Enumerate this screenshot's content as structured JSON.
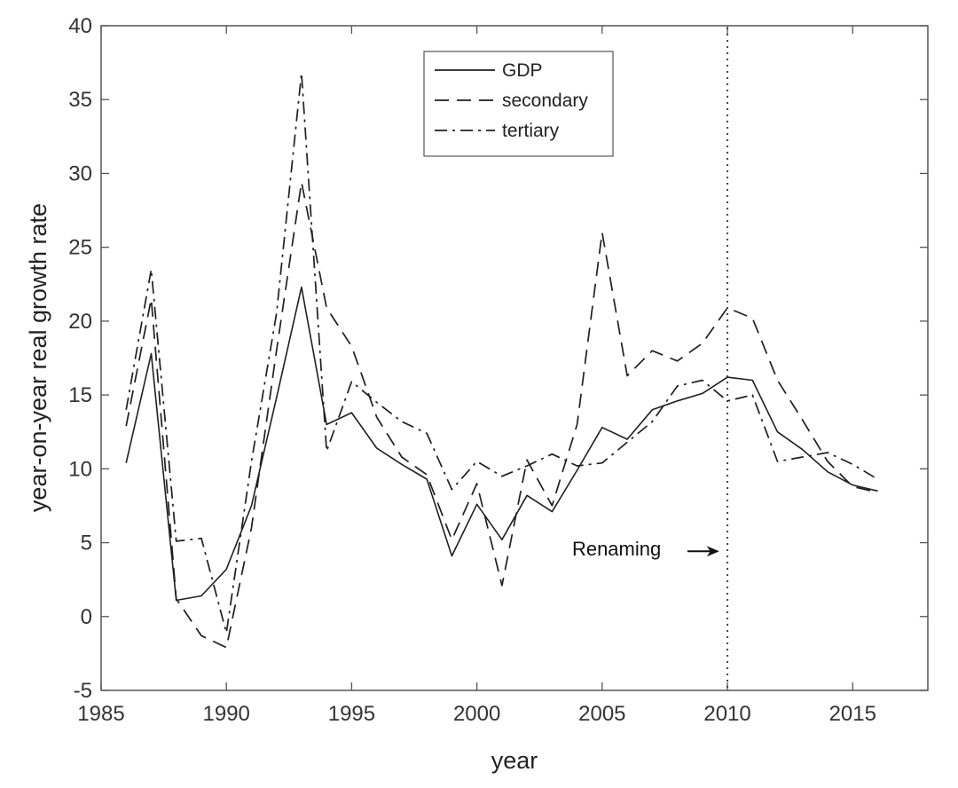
{
  "chart_data": {
    "type": "line",
    "title": "",
    "xlabel": "year",
    "ylabel": "year-on-year real growth rate",
    "xlim": [
      1985,
      2018
    ],
    "ylim": [
      -5,
      40
    ],
    "xticks": [
      1985,
      1990,
      1995,
      2000,
      2005,
      2010,
      2015
    ],
    "yticks": [
      -5,
      0,
      5,
      10,
      15,
      20,
      25,
      30,
      35,
      40
    ],
    "grid": false,
    "legend_position": "top-center",
    "x": [
      1986,
      1987,
      1988,
      1989,
      1990,
      1991,
      1992,
      1993,
      1994,
      1995,
      1996,
      1997,
      1998,
      1999,
      2000,
      2001,
      2002,
      2003,
      2004,
      2005,
      2006,
      2007,
      2008,
      2009,
      2010,
      2011,
      2012,
      2013,
      2014,
      2015,
      2016
    ],
    "series": [
      {
        "name": "GDP",
        "style": "solid",
        "values": [
          10.4,
          17.8,
          1.1,
          1.4,
          3.2,
          7.5,
          14.8,
          22.3,
          13.0,
          13.8,
          11.4,
          10.3,
          9.3,
          4.1,
          7.6,
          5.2,
          8.2,
          7.1,
          9.9,
          12.8,
          12.0,
          14.0,
          14.6,
          15.1,
          16.2,
          16.0,
          12.5,
          11.3,
          9.8,
          8.9,
          8.5
        ]
      },
      {
        "name": "secondary",
        "style": "dashed",
        "values": [
          12.9,
          21.5,
          1.2,
          -1.3,
          -2.1,
          6.0,
          18.0,
          29.4,
          20.9,
          18.3,
          13.5,
          10.8,
          9.6,
          5.2,
          9.0,
          2.1,
          10.6,
          7.5,
          13.0,
          26.0,
          16.3,
          18.0,
          17.3,
          18.5,
          20.9,
          20.2,
          16.0,
          13.3,
          10.5,
          8.8,
          8.4
        ]
      },
      {
        "name": "tertiary",
        "style": "dashdot",
        "values": [
          14.0,
          23.5,
          5.1,
          5.3,
          -1.1,
          10.5,
          20.5,
          36.8,
          11.2,
          15.9,
          14.5,
          13.2,
          12.4,
          8.6,
          10.5,
          9.5,
          10.2,
          11.0,
          10.2,
          10.4,
          11.8,
          13.2,
          15.6,
          16.0,
          14.6,
          15.0,
          10.5,
          10.8,
          11.1,
          10.3,
          9.3
        ]
      }
    ],
    "annotations": [
      {
        "type": "vline",
        "x": 2010,
        "style": "dotted"
      },
      {
        "type": "arrow-label",
        "text": "Renaming",
        "x": 2003.8,
        "y": 4.6,
        "arrow_to_x": 2009.6
      }
    ]
  }
}
